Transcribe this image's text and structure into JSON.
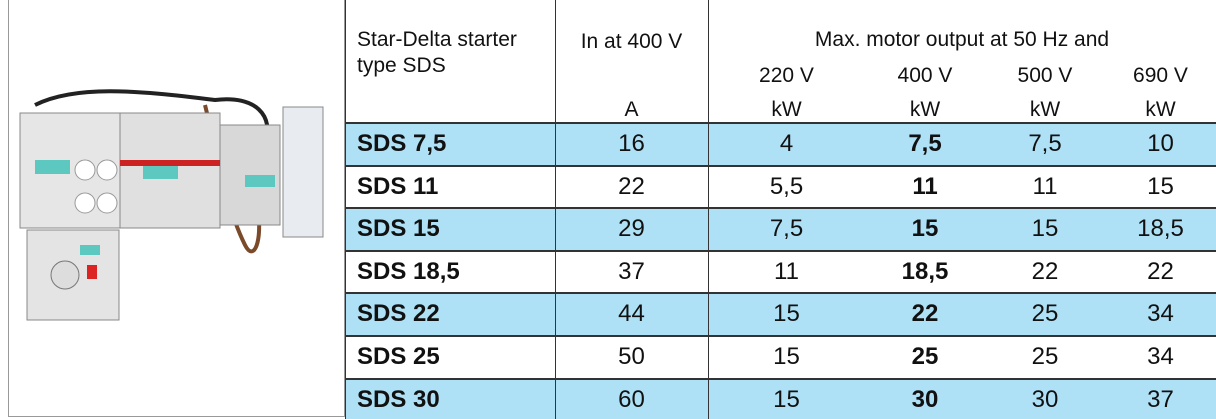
{
  "header": {
    "type": [
      "Star-Delta starter",
      "type SDS"
    ],
    "current": "In at 400 V",
    "current_unit": "A",
    "output": "Max. motor output at 50 Hz and",
    "voltages": [
      "220 V",
      "400 V",
      "500 V",
      "690 V"
    ],
    "output_units": [
      "kW",
      "kW",
      "kW",
      "kW"
    ]
  },
  "rows": [
    [
      "SDS 7,5",
      "16",
      "4",
      "7,5",
      "7,5",
      "10"
    ],
    [
      "SDS 11",
      "22",
      "5,5",
      "11",
      "11",
      "15"
    ],
    [
      "SDS 15",
      "29",
      "7,5",
      "15",
      "15",
      "18,5"
    ],
    [
      "SDS 18,5",
      "37",
      "11",
      "18,5",
      "22",
      "22"
    ],
    [
      "SDS 22",
      "44",
      "15",
      "22",
      "25",
      "34"
    ],
    [
      "SDS 25",
      "50",
      "15",
      "25",
      "25",
      "34"
    ],
    [
      "SDS 30",
      "60",
      "15",
      "30",
      "30",
      "37"
    ]
  ]
}
